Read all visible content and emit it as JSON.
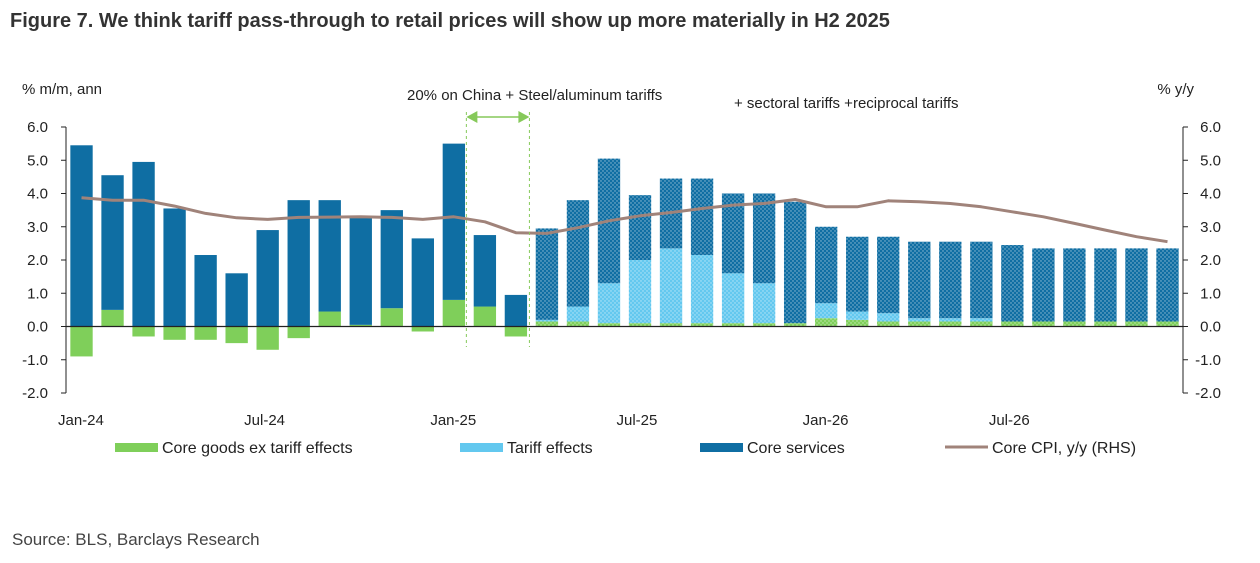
{
  "figure": {
    "title": "Figure 7. We think tariff pass-through to retail prices will show up more materially in H2 2025",
    "source": "Source: BLS, Barclays Research"
  },
  "colors": {
    "goods": "#7fcf5a",
    "tariff": "#63c8ef",
    "services": "#0f6ea3",
    "cpi": "#a0837a",
    "annotation": "#86c95a"
  },
  "chart_data": {
    "type": "bar",
    "stacked": true,
    "y_left_label": "% m/m, ann",
    "y_right_label": "% y/y",
    "ylim": [
      -2.0,
      6.0
    ],
    "ylim_right": [
      -2.0,
      6.0
    ],
    "y_ticks": [
      "6.0",
      "5.0",
      "4.0",
      "3.0",
      "2.0",
      "1.0",
      "0.0",
      "-1.0",
      "-2.0"
    ],
    "y_ticks_right": [
      "6.0",
      "5.0",
      "4.0",
      "3.0",
      "2.0",
      "1.0",
      "0.0",
      "-1.0",
      "-2.0"
    ],
    "categories": [
      "Jan-24",
      "Feb-24",
      "Mar-24",
      "Apr-24",
      "May-24",
      "Jun-24",
      "Jul-24",
      "Aug-24",
      "Sep-24",
      "Oct-24",
      "Nov-24",
      "Dec-24",
      "Jan-25",
      "Feb-25",
      "Mar-25",
      "Apr-25",
      "May-25",
      "Jun-25",
      "Jul-25",
      "Aug-25",
      "Sep-25",
      "Oct-25",
      "Nov-25",
      "Dec-25",
      "Jan-26",
      "Feb-26",
      "Mar-26",
      "Apr-26",
      "May-26",
      "Jun-26",
      "Jul-26",
      "Aug-26",
      "Sep-26",
      "Oct-26",
      "Nov-26",
      "Dec-26"
    ],
    "x_tick_labels": [
      {
        "index": 0,
        "label": "Jan-24"
      },
      {
        "index": 6,
        "label": "Jul-24"
      },
      {
        "index": 12,
        "label": "Jan-25"
      },
      {
        "index": 18,
        "label": "Jul-25"
      },
      {
        "index": 24,
        "label": "Jan-26"
      },
      {
        "index": 30,
        "label": "Jul-26"
      }
    ],
    "forecast_start_index": 15,
    "series": [
      {
        "name": "Core goods ex tariff effects",
        "kind": "bar",
        "values": [
          -0.9,
          0.5,
          -0.3,
          -0.4,
          -0.4,
          -0.5,
          -0.7,
          -0.35,
          0.45,
          0.05,
          0.55,
          -0.15,
          0.8,
          0.6,
          -0.3,
          0.15,
          0.15,
          0.1,
          0.1,
          0.1,
          0.1,
          0.1,
          0.1,
          0.1,
          0.25,
          0.2,
          0.15,
          0.15,
          0.15,
          0.15,
          0.15,
          0.15,
          0.15,
          0.15,
          0.15,
          0.15
        ]
      },
      {
        "name": "Tariff effects",
        "kind": "bar",
        "values": [
          0,
          0,
          0,
          0,
          0,
          0,
          0,
          0,
          0,
          0,
          0,
          0,
          0,
          0,
          0,
          0.05,
          0.45,
          1.2,
          1.9,
          2.25,
          2.05,
          1.5,
          1.2,
          0,
          0.45,
          0.25,
          0.25,
          0.1,
          0.1,
          0.1,
          0,
          0,
          0,
          0,
          0,
          0
        ]
      },
      {
        "name": "Core services",
        "kind": "bar",
        "values": [
          5.45,
          4.05,
          4.95,
          3.55,
          2.15,
          1.6,
          2.9,
          3.8,
          3.35,
          3.25,
          2.95,
          2.65,
          4.7,
          2.15,
          0.95,
          2.75,
          3.2,
          3.75,
          1.95,
          2.1,
          2.3,
          2.4,
          2.7,
          3.65,
          2.3,
          2.25,
          2.3,
          2.3,
          2.3,
          2.3,
          2.3,
          2.2,
          2.2,
          2.2,
          2.2,
          2.2
        ]
      },
      {
        "name": "Core CPI, y/y (RHS)",
        "kind": "line",
        "axis": "right",
        "values": [
          3.87,
          3.8,
          3.8,
          3.62,
          3.4,
          3.27,
          3.22,
          3.28,
          3.29,
          3.3,
          3.28,
          3.22,
          3.3,
          3.15,
          2.82,
          2.8,
          2.97,
          3.18,
          3.33,
          3.43,
          3.55,
          3.65,
          3.7,
          3.82,
          3.6,
          3.6,
          3.78,
          3.75,
          3.7,
          3.6,
          3.45,
          3.3,
          3.1,
          2.9,
          2.7,
          2.55
        ]
      }
    ],
    "legend": {
      "position": "bottom"
    },
    "annotations": {
      "china_tariffs": "20% on China + Steel/aluminum tariffs",
      "sectoral_tariffs": "+ sectoral tariffs +reciprocal tariffs"
    }
  }
}
